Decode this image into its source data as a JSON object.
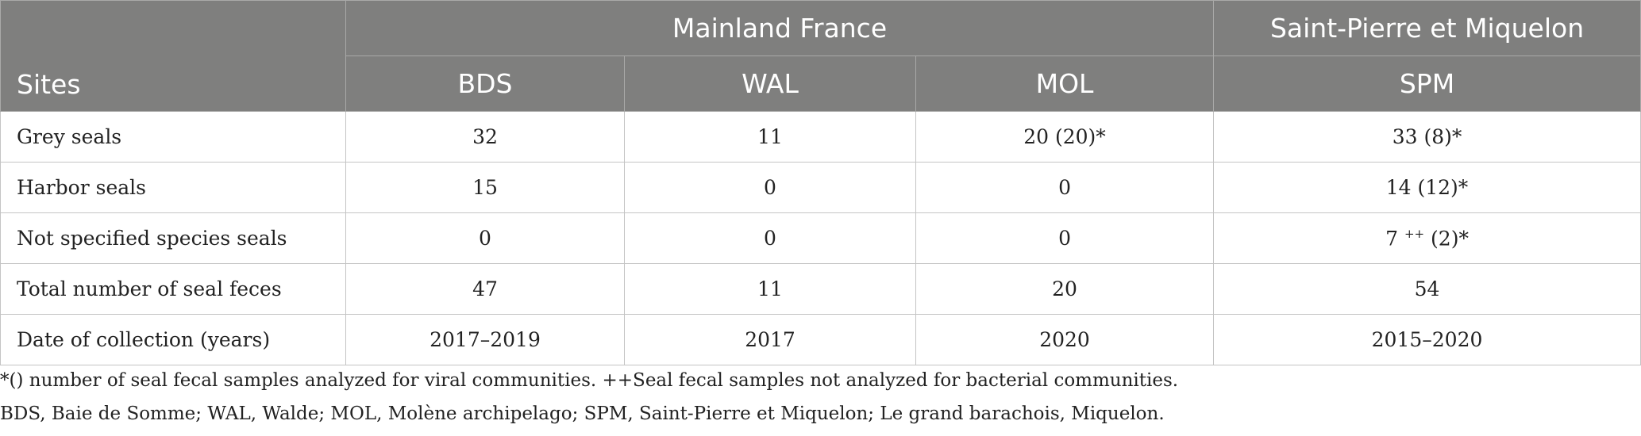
{
  "table": {
    "corner_label": "Sites",
    "groups": [
      {
        "label": "Mainland France"
      },
      {
        "label": "Saint-Pierre et Miquelon"
      }
    ],
    "sites": [
      "BDS",
      "WAL",
      "MOL",
      "SPM"
    ],
    "rows": [
      {
        "label": "Grey seals",
        "cells": [
          "32",
          "11",
          "20 (20)*",
          "33 (8)*"
        ]
      },
      {
        "label": "Harbor seals",
        "cells": [
          "15",
          "0",
          "0",
          "14 (12)*"
        ]
      },
      {
        "label": "Not specified species seals",
        "cells": [
          "0",
          "0",
          "0",
          "7"
        ],
        "spm_sup": "++",
        "spm_tail": " (2)*"
      },
      {
        "label": "Total number of seal feces",
        "cells": [
          "47",
          "11",
          "20",
          "54"
        ]
      },
      {
        "label": "Date of collection (years)",
        "cells": [
          "2017–2019",
          "2017",
          "2020",
          "2015–2020"
        ]
      }
    ]
  },
  "footnotes": [
    "*() number of seal fecal samples analyzed for viral communities. ++Seal fecal samples not analyzed for bacterial communities.",
    "BDS, Baie de Somme; WAL, Walde; MOL, Molène archipelago; SPM, Saint-Pierre et Miquelon; Le grand barachois, Miquelon."
  ]
}
